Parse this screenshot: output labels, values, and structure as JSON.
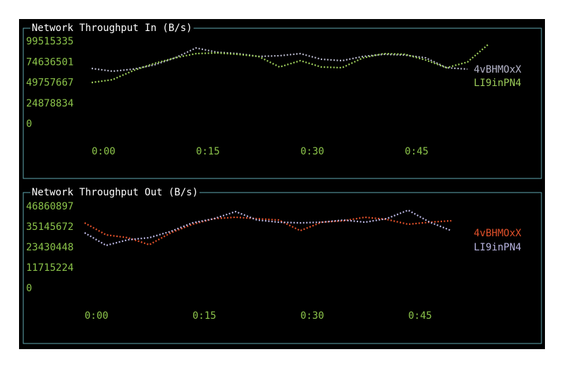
{
  "chart_data": [
    {
      "type": "line",
      "title": "Network Throughput In (B/s)",
      "x": [
        0,
        3,
        6,
        9,
        12,
        15,
        18,
        21,
        24,
        27,
        30,
        33,
        36,
        39,
        42,
        45,
        48,
        51,
        54,
        57
      ],
      "xlim": [
        0,
        57
      ],
      "xticks": [
        {
          "value": 0,
          "label": "0:00"
        },
        {
          "value": 15,
          "label": "0:15"
        },
        {
          "value": 30,
          "label": "0:30"
        },
        {
          "value": 45,
          "label": "0:45"
        }
      ],
      "ylim": [
        0,
        99515335
      ],
      "yticks": [
        0,
        24878834,
        49757667,
        74636501,
        99515335
      ],
      "series": [
        {
          "name": "4vBHMOxX",
          "color": "#b4b4c8",
          "values": [
            67194000,
            63792000,
            66344000,
            71447000,
            79952000,
            91860000,
            86757000,
            85056000,
            81654000,
            82504000,
            85056000,
            78251000,
            76550000,
            81654000,
            84205000,
            83355000,
            79952000,
            68045000,
            66344000,
            null
          ]
        },
        {
          "name": "LI9inPN4",
          "color": "#9ccc5a",
          "values": [
            50183000,
            53585000,
            64642000,
            73148000,
            79952000,
            85056000,
            85906000,
            84205000,
            81654000,
            68895000,
            76550000,
            68895000,
            68045000,
            79952000,
            85056000,
            84205000,
            77301000,
            68045000,
            74849000,
            96113000
          ]
        }
      ]
    },
    {
      "type": "line",
      "title": "Network Throughput Out (B/s)",
      "x": [
        0,
        3,
        6,
        9,
        12,
        15,
        18,
        21,
        24,
        27,
        30,
        33,
        36,
        39,
        42,
        45,
        48,
        51
      ],
      "xlim": [
        0,
        51
      ],
      "xticks": [
        {
          "value": 0,
          "label": "0:00"
        },
        {
          "value": 15,
          "label": "0:15"
        },
        {
          "value": 30,
          "label": "0:30"
        },
        {
          "value": 45,
          "label": "0:45"
        }
      ],
      "ylim": [
        0,
        46860897
      ],
      "yticks": [
        0,
        11715224,
        23430448,
        35145672,
        46860897
      ],
      "series": [
        {
          "name": "4vBHMOxX",
          "color": "#e0502a",
          "values": [
            37569000,
            30702000,
            29086000,
            25046000,
            31914000,
            36761000,
            39993000,
            40801000,
            39993000,
            39185000,
            33126000,
            37973000,
            38781000,
            40801000,
            39589000,
            36761000,
            37973000,
            38781000
          ]
        },
        {
          "name": "LI9inPN4",
          "color": "#b8b4e0",
          "values": [
            31914000,
            24642000,
            27874000,
            29086000,
            32722000,
            37569000,
            39993000,
            44033000,
            39185000,
            37973000,
            37569000,
            37973000,
            39185000,
            37973000,
            39993000,
            44841000,
            37973000,
            33126000
          ]
        }
      ]
    }
  ]
}
